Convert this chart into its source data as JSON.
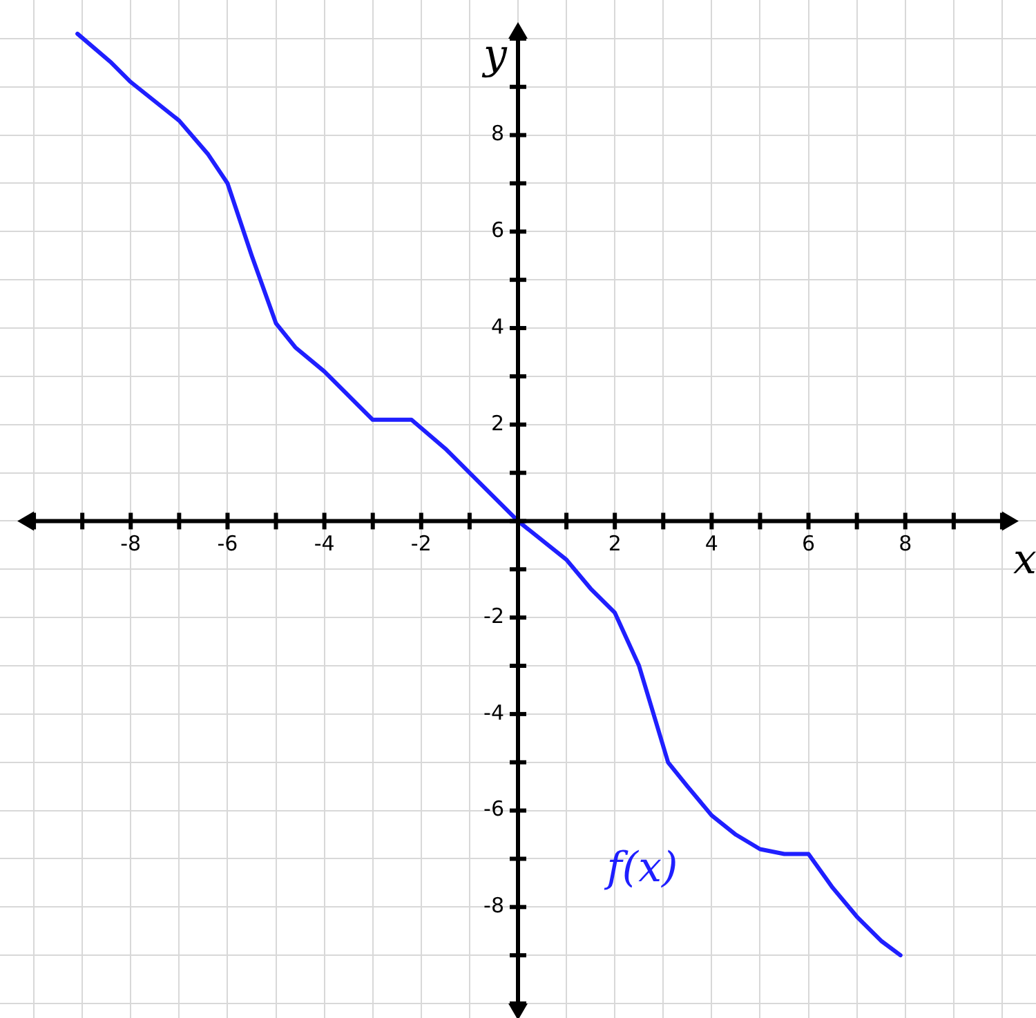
{
  "chart_data": {
    "type": "line",
    "xlabel": "x",
    "ylabel": "y",
    "xlim": [
      -10.7,
      10.7
    ],
    "ylim": [
      -10.3,
      10.8
    ],
    "xticks": [
      {
        "value": -10,
        "label": null
      },
      {
        "value": -9,
        "label": null
      },
      -8,
      {
        "value": -7,
        "label": null
      },
      -6,
      {
        "value": -5,
        "label": null
      },
      -4,
      {
        "value": -3,
        "label": null
      },
      -2,
      {
        "value": -1,
        "label": null
      },
      {
        "value": 0,
        "label": null
      },
      {
        "value": 1,
        "label": null
      },
      2,
      {
        "value": 3,
        "label": null
      },
      4,
      {
        "value": 5,
        "label": null
      },
      6,
      {
        "value": 7,
        "label": null
      },
      8,
      {
        "value": 9,
        "label": null
      },
      {
        "value": 10,
        "label": null
      }
    ],
    "yticks": [
      {
        "value": -10,
        "label": null
      },
      {
        "value": -9,
        "label": null
      },
      -8,
      {
        "value": -7,
        "label": null
      },
      -6,
      {
        "value": -5,
        "label": null
      },
      -4,
      {
        "value": -3,
        "label": null
      },
      -2,
      {
        "value": -1,
        "label": null
      },
      {
        "value": 0,
        "label": null
      },
      {
        "value": 1,
        "label": null
      },
      2,
      {
        "value": 3,
        "label": null
      },
      4,
      {
        "value": 5,
        "label": null
      },
      6,
      {
        "value": 7,
        "label": null
      },
      8,
      {
        "value": 9,
        "label": null
      },
      {
        "value": 10,
        "label": null
      }
    ],
    "grid": true,
    "legend": false,
    "marker": "none",
    "line_style": "solid",
    "series": [
      {
        "color": "#1f1fff",
        "x": [
          -9.1,
          -8.4,
          -8,
          -7,
          -6.4,
          -6,
          -5.5,
          -5,
          -4.6,
          -4,
          -3.5,
          -3,
          -2.5,
          -2.2,
          -1.5,
          -1,
          0,
          1,
          1.5,
          2,
          2.5,
          3.1,
          3.5,
          4,
          4.5,
          5,
          5.5,
          6,
          6.5,
          7,
          7.5,
          7.9
        ],
        "values": [
          10.1,
          9.5,
          9.1,
          8.3,
          7.6,
          7,
          5.5,
          4.1,
          3.6,
          3.1,
          2.6,
          2.1,
          2.1,
          2.1,
          1.5,
          1,
          0,
          -0.8,
          -1.4,
          -1.9,
          -3,
          -5,
          -5.5,
          -6.1,
          -6.5,
          -6.8,
          -6.9,
          -6.9,
          -7.6,
          -8.2,
          -8.7,
          -9
        ]
      }
    ],
    "annotations": [
      "f(x)"
    ]
  }
}
